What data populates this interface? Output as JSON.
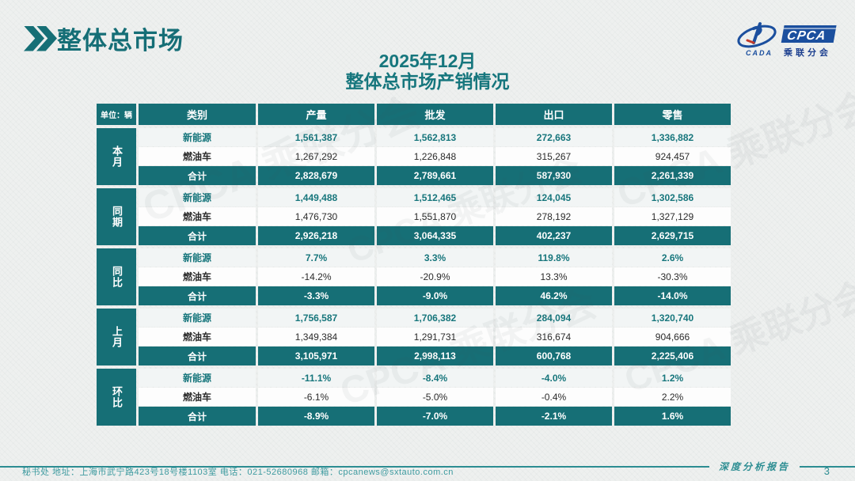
{
  "header": {
    "title": "整体总市场"
  },
  "slide_title": {
    "line1": "2025年12月",
    "line2": "整体总市场产销情况"
  },
  "logo": {
    "cpca": "CPCA",
    "cada": "CADA",
    "sub": "乘联分会"
  },
  "colors": {
    "teal": "#166f76",
    "logo_blue": "#1b4f9e",
    "footer_teal": "#2c8d92"
  },
  "watermark_text": "CPCA 乘联分会",
  "table": {
    "unit_label": "单位：辆",
    "columns": [
      "类别",
      "产量",
      "批发",
      "出口",
      "零售"
    ],
    "groups": [
      {
        "label": "本月",
        "rows": [
          {
            "type": "新能源",
            "values": [
              "1,561,387",
              "1,562,813",
              "272,663",
              "1,336,882"
            ]
          },
          {
            "type": "燃油车",
            "values": [
              "1,267,292",
              "1,226,848",
              "315,267",
              "924,457"
            ]
          },
          {
            "type": "合计",
            "values": [
              "2,828,679",
              "2,789,661",
              "587,930",
              "2,261,339"
            ]
          }
        ]
      },
      {
        "label": "同期",
        "rows": [
          {
            "type": "新能源",
            "values": [
              "1,449,488",
              "1,512,465",
              "124,045",
              "1,302,586"
            ]
          },
          {
            "type": "燃油车",
            "values": [
              "1,476,730",
              "1,551,870",
              "278,192",
              "1,327,129"
            ]
          },
          {
            "type": "合计",
            "values": [
              "2,926,218",
              "3,064,335",
              "402,237",
              "2,629,715"
            ]
          }
        ]
      },
      {
        "label": "同比",
        "rows": [
          {
            "type": "新能源",
            "values": [
              "7.7%",
              "3.3%",
              "119.8%",
              "2.6%"
            ]
          },
          {
            "type": "燃油车",
            "values": [
              "-14.2%",
              "-20.9%",
              "13.3%",
              "-30.3%"
            ]
          },
          {
            "type": "合计",
            "values": [
              "-3.3%",
              "-9.0%",
              "46.2%",
              "-14.0%"
            ]
          }
        ]
      },
      {
        "label": "上月",
        "rows": [
          {
            "type": "新能源",
            "values": [
              "1,756,587",
              "1,706,382",
              "284,094",
              "1,320,740"
            ]
          },
          {
            "type": "燃油车",
            "values": [
              "1,349,384",
              "1,291,731",
              "316,674",
              "904,666"
            ]
          },
          {
            "type": "合计",
            "values": [
              "3,105,971",
              "2,998,113",
              "600,768",
              "2,225,406"
            ]
          }
        ]
      },
      {
        "label": "环比",
        "rows": [
          {
            "type": "新能源",
            "values": [
              "-11.1%",
              "-8.4%",
              "-4.0%",
              "1.2%"
            ]
          },
          {
            "type": "燃油车",
            "values": [
              "-6.1%",
              "-5.0%",
              "-0.4%",
              "2.2%"
            ]
          },
          {
            "type": "合计",
            "values": [
              "-8.9%",
              "-7.0%",
              "-2.1%",
              "1.6%"
            ]
          }
        ]
      }
    ]
  },
  "footer": {
    "left_text": "秘书处   地址：上海市武宁路423号18号楼1103室   电话：021-52680968   邮箱：cpcanews@sxtauto.com.cn",
    "right_label": "深度分析报告",
    "page_number": "3"
  }
}
